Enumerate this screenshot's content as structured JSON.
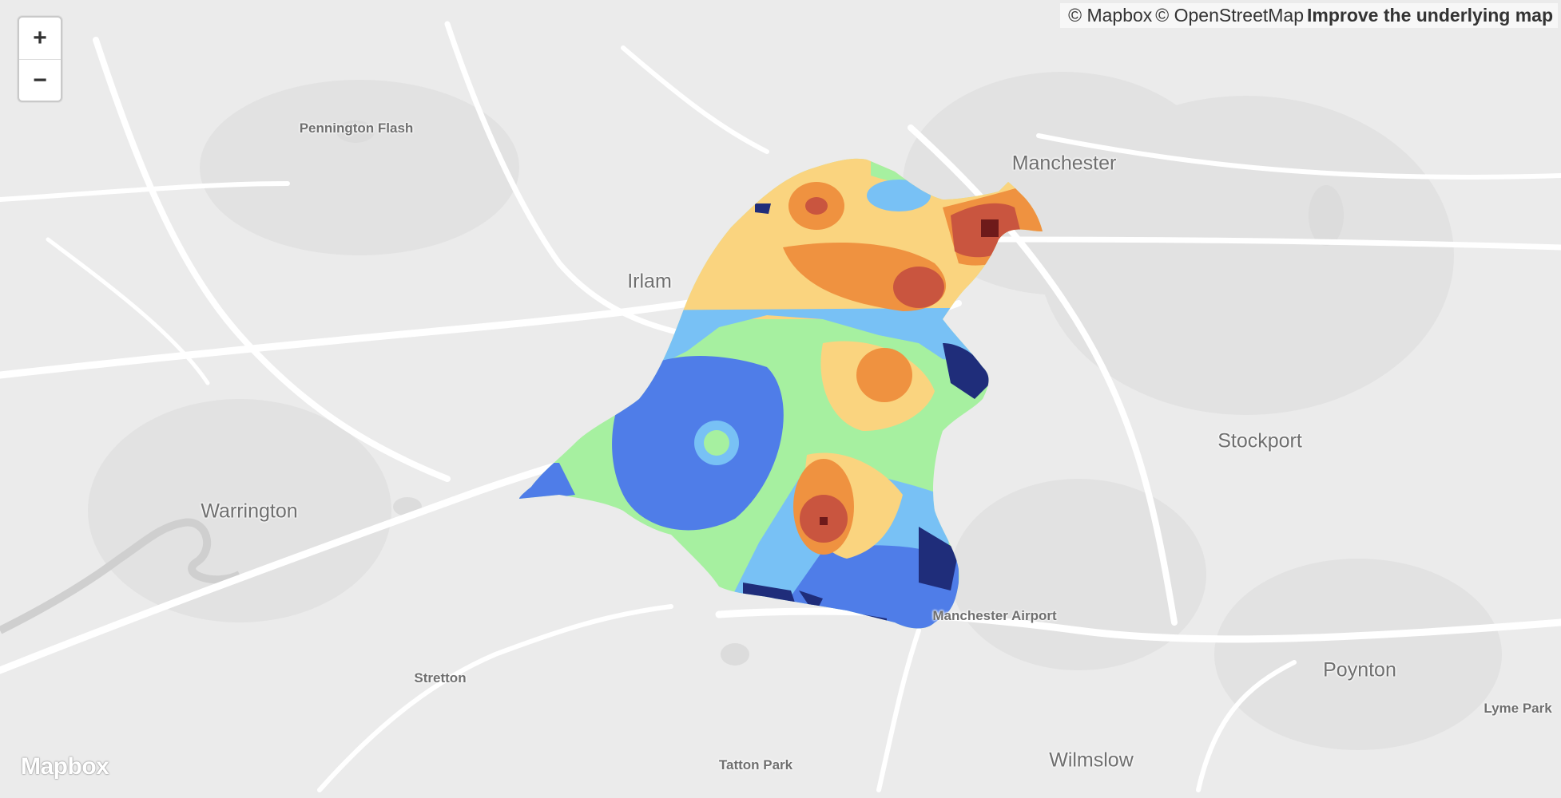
{
  "map": {
    "zoom_in_label": "+",
    "zoom_out_label": "−",
    "attribution": {
      "mapbox": "© Mapbox",
      "osm": "© OpenStreetMap",
      "improve": "Improve the underlying map"
    },
    "logo": "Mapbox",
    "places": {
      "manchester": "Manchester",
      "pennington_flash": "Pennington Flash",
      "irlam": "Irlam",
      "stockport": "Stockport",
      "warrington": "Warrington",
      "manchester_airport": "Manchester Airport",
      "stretton": "Stretton",
      "poynton": "Poynton",
      "lyme_park": "Lyme Park",
      "tatton_park": "Tatton Park",
      "wilmslow": "Wilmslow"
    },
    "heatmap_colors": [
      "#1f2d7a",
      "#4f7de8",
      "#78c1f5",
      "#a6f0a0",
      "#fad47f",
      "#ef9240",
      "#c9553f",
      "#6e1a1a"
    ]
  }
}
